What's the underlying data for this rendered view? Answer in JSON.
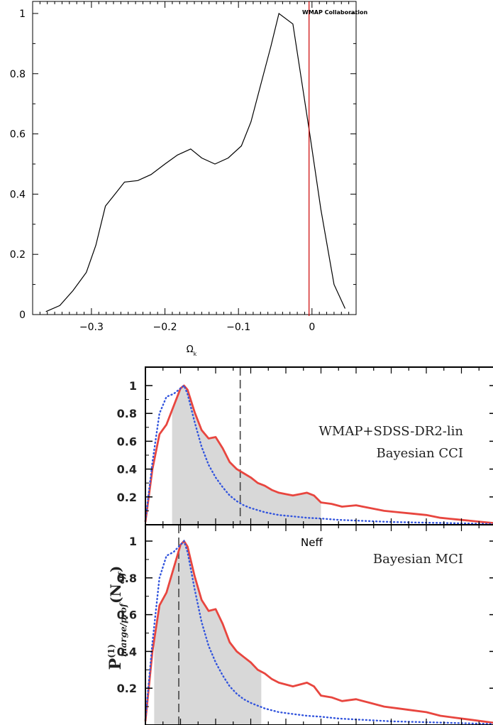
{
  "charts": {
    "top": {
      "annotation": "WMAP  Collaboration",
      "xlabel_main": "Ω",
      "xlabel_sub": "k"
    },
    "bottom": {
      "ylabel_main": "P",
      "ylabel_sup": "(1)",
      "ylabel_sub": "marge/prof",
      "ylabel_arg_open": "(N",
      "ylabel_arg_sub": "eff",
      "ylabel_arg_close": ")",
      "upper_label_line1": "WMAP+SDSS-DR2-lin",
      "upper_label_line2": "Bayesian CCI",
      "lower_label": "Bayesian MCI",
      "overlay_label": "Neff"
    }
  },
  "chart_data": [
    {
      "type": "line",
      "title": "",
      "xlabel": "Ω_k",
      "ylabel": "",
      "xlim": [
        -0.38,
        0.06
      ],
      "ylim": [
        0,
        1.04
      ],
      "xticks": [
        -0.3,
        -0.2,
        -0.1,
        0
      ],
      "xtick_labels": [
        "−0.3",
        "−0.2",
        "−0.1",
        "0"
      ],
      "yticks": [
        0,
        0.2,
        0.4,
        0.6,
        0.8,
        1
      ],
      "ytick_labels": [
        "0",
        "0.2",
        "0.4",
        "0.6",
        "0.8",
        "1"
      ],
      "grid": false,
      "series": [
        {
          "color": "#000000",
          "x": [
            -0.362,
            -0.343,
            -0.325,
            -0.307,
            -0.294,
            -0.281,
            -0.268,
            -0.255,
            -0.237,
            -0.219,
            -0.2,
            -0.183,
            -0.165,
            -0.15,
            -0.132,
            -0.114,
            -0.096,
            -0.083,
            -0.069,
            -0.056,
            -0.045,
            -0.026,
            -0.003,
            0.012,
            0.03,
            0.045
          ],
          "y": [
            0.01,
            0.03,
            0.08,
            0.14,
            0.23,
            0.36,
            0.4,
            0.44,
            0.445,
            0.465,
            0.5,
            0.53,
            0.55,
            0.52,
            0.5,
            0.52,
            0.56,
            0.64,
            0.77,
            0.89,
            1.0,
            0.965,
            0.6,
            0.35,
            0.1,
            0.02
          ]
        }
      ],
      "vertical_line": {
        "x": -0.004,
        "color": "#cc0000"
      },
      "annotation": "WMAP  Collaboration"
    },
    {
      "type": "line",
      "title": "",
      "xlabel": "",
      "ylabel": "P^(1)_marge/prof(N_eff)",
      "panels": [
        {
          "label": "WMAP+SDSS-DR2-lin / Bayesian CCI",
          "xlim": [
            0,
            10
          ],
          "ylim": [
            0,
            1.08
          ],
          "yticks": [
            0.2,
            0.4,
            0.6,
            0.8,
            1
          ],
          "ytick_labels": [
            "0.2",
            "0.4",
            "0.6",
            "0.8",
            "1"
          ],
          "shaded_interval": [
            0.76,
            5.0
          ],
          "dashed_line_x": 2.7,
          "series": [
            {
              "style": "solid",
              "color": "#e8463f",
              "x": [
                0,
                0.2,
                0.4,
                0.6,
                0.8,
                1.0,
                1.1,
                1.2,
                1.4,
                1.6,
                1.8,
                2.0,
                2.2,
                2.4,
                2.6,
                2.8,
                3.0,
                3.2,
                3.4,
                3.6,
                3.8,
                4.0,
                4.2,
                4.4,
                4.6,
                4.8,
                5.0,
                5.3,
                5.6,
                6.0,
                6.4,
                6.8,
                7.2,
                7.6,
                8.0,
                8.4,
                8.8,
                9.2,
                9.6,
                10.0
              ],
              "y": [
                0.02,
                0.4,
                0.65,
                0.72,
                0.85,
                0.98,
                1.0,
                0.97,
                0.81,
                0.68,
                0.62,
                0.63,
                0.55,
                0.45,
                0.4,
                0.37,
                0.34,
                0.3,
                0.28,
                0.25,
                0.23,
                0.22,
                0.21,
                0.22,
                0.23,
                0.21,
                0.16,
                0.15,
                0.13,
                0.14,
                0.12,
                0.1,
                0.09,
                0.08,
                0.07,
                0.05,
                0.04,
                0.03,
                0.02,
                0.01
              ]
            },
            {
              "style": "dotted",
              "color": "#3355dd",
              "x": [
                0,
                0.2,
                0.4,
                0.6,
                0.8,
                1.0,
                1.1,
                1.2,
                1.4,
                1.6,
                1.8,
                2.0,
                2.2,
                2.4,
                2.6,
                2.8,
                3.0,
                3.4,
                3.8,
                4.2,
                4.6,
                5.0,
                5.5,
                6.0,
                6.5,
                7.0,
                8.0,
                9.0,
                10.0
              ],
              "y": [
                0.03,
                0.45,
                0.8,
                0.92,
                0.94,
                0.98,
                1.0,
                0.94,
                0.74,
                0.56,
                0.43,
                0.34,
                0.27,
                0.21,
                0.17,
                0.14,
                0.12,
                0.09,
                0.07,
                0.06,
                0.05,
                0.045,
                0.035,
                0.03,
                0.025,
                0.02,
                0.015,
                0.01,
                0.005
              ]
            }
          ]
        },
        {
          "label": "Bayesian MCI",
          "xlim": [
            0,
            10
          ],
          "ylim": [
            0,
            1.08
          ],
          "yticks": [
            0.2,
            0.4,
            0.6,
            0.8,
            1
          ],
          "ytick_labels": [
            "0.2",
            "0.4",
            "0.6",
            "0.8",
            "1"
          ],
          "shaded_interval": [
            0.25,
            3.3
          ],
          "dashed_line_x": 0.95,
          "series": [
            {
              "style": "solid",
              "color": "#e8463f",
              "x": [
                0,
                0.2,
                0.4,
                0.6,
                0.8,
                1.0,
                1.1,
                1.2,
                1.4,
                1.6,
                1.8,
                2.0,
                2.2,
                2.4,
                2.6,
                2.8,
                3.0,
                3.2,
                3.4,
                3.6,
                3.8,
                4.0,
                4.2,
                4.4,
                4.6,
                4.8,
                5.0,
                5.3,
                5.6,
                6.0,
                6.4,
                6.8,
                7.2,
                7.6,
                8.0,
                8.4,
                8.8,
                9.2,
                9.6,
                10.0
              ],
              "y": [
                0.02,
                0.4,
                0.65,
                0.72,
                0.85,
                0.98,
                1.0,
                0.97,
                0.81,
                0.68,
                0.62,
                0.63,
                0.55,
                0.45,
                0.4,
                0.37,
                0.34,
                0.3,
                0.28,
                0.25,
                0.23,
                0.22,
                0.21,
                0.22,
                0.23,
                0.21,
                0.16,
                0.15,
                0.13,
                0.14,
                0.12,
                0.1,
                0.09,
                0.08,
                0.07,
                0.05,
                0.04,
                0.03,
                0.02,
                0.01
              ]
            },
            {
              "style": "dotted",
              "color": "#3355dd",
              "x": [
                0,
                0.2,
                0.4,
                0.6,
                0.8,
                1.0,
                1.1,
                1.2,
                1.4,
                1.6,
                1.8,
                2.0,
                2.2,
                2.4,
                2.6,
                2.8,
                3.0,
                3.4,
                3.8,
                4.2,
                4.6,
                5.0,
                5.5,
                6.0,
                6.5,
                7.0,
                8.0,
                9.0,
                10.0
              ],
              "y": [
                0.03,
                0.45,
                0.8,
                0.92,
                0.94,
                0.98,
                1.0,
                0.94,
                0.74,
                0.56,
                0.43,
                0.34,
                0.27,
                0.21,
                0.17,
                0.14,
                0.12,
                0.09,
                0.07,
                0.06,
                0.05,
                0.045,
                0.035,
                0.03,
                0.025,
                0.02,
                0.015,
                0.01,
                0.005
              ]
            }
          ]
        }
      ]
    }
  ]
}
